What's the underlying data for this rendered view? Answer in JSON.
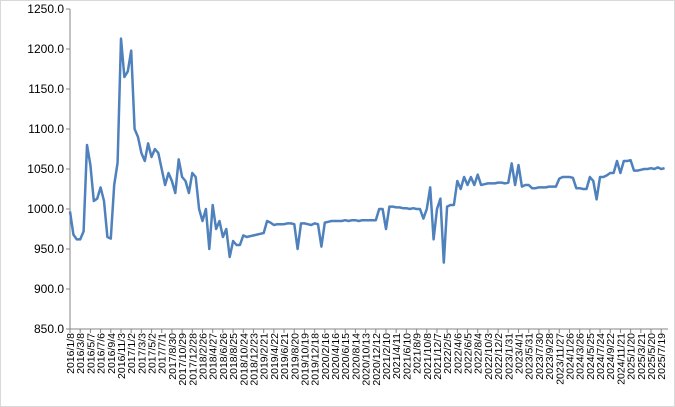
{
  "chart_data": {
    "type": "line",
    "color": "#4f81bd",
    "categories": [
      "2016/1/8",
      null,
      null,
      "2016/3/8",
      null,
      null,
      "2016/5/7",
      null,
      null,
      "2016/7/6",
      null,
      null,
      "2016/9/4",
      null,
      null,
      "2016/11/3",
      null,
      null,
      "2017/1/2",
      null,
      null,
      "2017/3/3",
      null,
      null,
      "2017/5/2",
      null,
      null,
      "2017/7/1",
      null,
      null,
      "2017/8/30",
      null,
      null,
      "2017/10/29",
      null,
      null,
      "2017/12/28",
      null,
      null,
      "2018/2/26",
      null,
      null,
      "2018/4/27",
      null,
      null,
      "2018/6/26",
      null,
      null,
      "2018/8/25",
      null,
      null,
      "2018/10/24",
      null,
      null,
      "2018/12/23",
      null,
      null,
      "2019/2/21",
      null,
      null,
      "2019/4/22",
      null,
      null,
      "2019/6/21",
      null,
      null,
      "2019/8/20",
      null,
      null,
      "2019/10/19",
      null,
      null,
      "2019/12/18",
      null,
      null,
      "2020/2/16",
      null,
      null,
      "2020/4/16",
      null,
      null,
      "2020/6/15",
      null,
      null,
      "2020/8/14",
      null,
      null,
      "2020/10/13",
      null,
      null,
      "2020/12/12",
      null,
      null,
      "2021/2/10",
      null,
      null,
      "2021/4/11",
      null,
      null,
      "2021/6/10",
      null,
      null,
      "2021/8/9",
      null,
      null,
      "2021/10/8",
      null,
      null,
      "2021/12/7",
      null,
      null,
      "2022/2/5",
      null,
      null,
      "2022/4/6",
      null,
      null,
      "2022/6/5",
      null,
      null,
      "2022/8/4",
      null,
      null,
      "2022/10/3",
      null,
      null,
      "2022/12/2",
      null,
      null,
      "2023/1/31",
      null,
      null,
      "2023/4/1",
      null,
      null,
      "2023/5/31",
      null,
      null,
      "2023/7/30",
      null,
      null,
      "2023/9/28",
      null,
      null,
      "2023/11/27",
      null,
      null,
      "2024/1/26",
      null,
      null,
      "2024/3/26",
      null,
      null,
      "2024/5/25",
      null,
      null,
      "2024/7/24",
      null,
      null,
      "2024/9/22",
      null,
      null,
      "2024/11/21",
      null,
      null,
      "2025/1/20",
      null,
      null,
      "2025/3/21",
      null,
      null,
      "2025/5/20",
      null,
      null,
      "2025/7/19",
      null
    ],
    "values": [
      997,
      968,
      962,
      962,
      972,
      1080,
      1055,
      1010,
      1013,
      1027,
      1010,
      965,
      963,
      1030,
      1058,
      1213,
      1165,
      1172,
      1198,
      1100,
      1090,
      1070,
      1060,
      1082,
      1065,
      1075,
      1070,
      1050,
      1030,
      1045,
      1035,
      1020,
      1062,
      1040,
      1035,
      1020,
      1045,
      1040,
      1000,
      985,
      1000,
      950,
      1005,
      975,
      985,
      965,
      975,
      940,
      960,
      955,
      955,
      967,
      965,
      966,
      967,
      968,
      969,
      970,
      985,
      983,
      980,
      981,
      981,
      981,
      982,
      982,
      981,
      950,
      982,
      982,
      981,
      980,
      982,
      981,
      953,
      983,
      984,
      985,
      985,
      985,
      985,
      986,
      985,
      986,
      986,
      985,
      986,
      986,
      986,
      986,
      986,
      1000,
      1000,
      975,
      1003,
      1003,
      1002,
      1002,
      1001,
      1001,
      1000,
      1001,
      1000,
      1000,
      988,
      1000,
      1027,
      962,
      1000,
      1013,
      933,
      1003,
      1005,
      1005,
      1035,
      1025,
      1040,
      1030,
      1040,
      1030,
      1043,
      1030,
      1031,
      1032,
      1032,
      1032,
      1033,
      1033,
      1032,
      1033,
      1057,
      1030,
      1055,
      1028,
      1030,
      1030,
      1026,
      1026,
      1027,
      1027,
      1027,
      1028,
      1028,
      1028,
      1038,
      1040,
      1040,
      1040,
      1039,
      1026,
      1026,
      1025,
      1025,
      1040,
      1035,
      1012,
      1040,
      1040,
      1042,
      1045,
      1045,
      1060,
      1045,
      1060,
      1060,
      1061,
      1048,
      1048,
      1049,
      1050,
      1050,
      1051,
      1050,
      1052,
      1050,
      1051
    ],
    "ylim": [
      850,
      1250
    ],
    "yticks": [
      {
        "value": 850,
        "label": "850.0"
      },
      {
        "value": 900,
        "label": "900.0"
      },
      {
        "value": 950,
        "label": "950.0"
      },
      {
        "value": 1000,
        "label": "1000.0"
      },
      {
        "value": 1050,
        "label": "1050.0"
      },
      {
        "value": 1100,
        "label": "1100.0"
      },
      {
        "value": 1150,
        "label": "1150.0"
      },
      {
        "value": 1200,
        "label": "1200.0"
      },
      {
        "value": 1250,
        "label": "1250.0"
      }
    ]
  }
}
